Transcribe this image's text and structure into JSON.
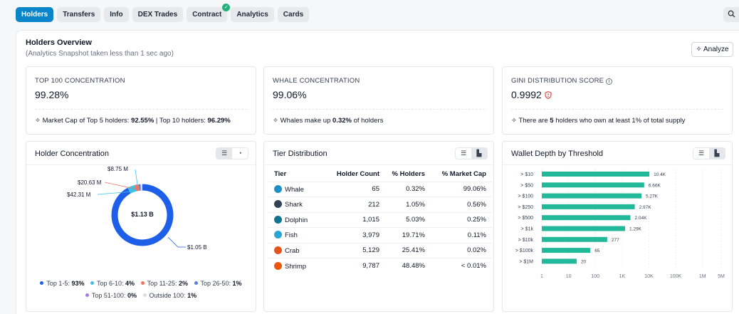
{
  "tabs": [
    {
      "label": "Holders",
      "active": true
    },
    {
      "label": "Transfers",
      "active": false
    },
    {
      "label": "Info",
      "active": false
    },
    {
      "label": "DEX Trades",
      "active": false
    },
    {
      "label": "Contract",
      "active": false,
      "badge": "check-icon"
    },
    {
      "label": "Analytics",
      "active": false
    },
    {
      "label": "Cards",
      "active": false
    }
  ],
  "overview": {
    "title": "Holders Overview",
    "subtitle": "(Analytics Snapshot taken less than 1 sec ago)",
    "analyze_label": "Analyze"
  },
  "stats": {
    "top100": {
      "label": "TOP 100 CONCENTRATION",
      "value": "99.28%",
      "foot_pre": "Market Cap of Top 5 holders: ",
      "foot_v1": "92.55%",
      "foot_mid": " | Top 10 holders: ",
      "foot_v2": "96.29%"
    },
    "whale": {
      "label": "WHALE CONCENTRATION",
      "value": "99.06%",
      "foot_pre": "Whales make up ",
      "foot_v1": "0.32%",
      "foot_post": " of holders"
    },
    "gini": {
      "label": "GINI DISTRIBUTION SCORE",
      "value": "0.9992",
      "foot_pre": "There are ",
      "foot_v1": "5",
      "foot_post": " holders who own at least 1% of total supply"
    }
  },
  "holder_concentration": {
    "title": "Holder Concentration",
    "center_label": "$1.13 B",
    "callouts": [
      "$8.75 M",
      "$20.63 M",
      "$42.31 M",
      "$1.05 B"
    ],
    "legend": [
      {
        "label": "Top 1-5:",
        "value": "93%",
        "color": "#1d5fe8"
      },
      {
        "label": "Top 6-10:",
        "value": "4%",
        "color": "#3cc2e6"
      },
      {
        "label": "Top 11-25:",
        "value": "2%",
        "color": "#f0735f"
      },
      {
        "label": "Top 26-50:",
        "value": "1%",
        "color": "#5b7ee0"
      },
      {
        "label": "Top 51-100:",
        "value": "0%",
        "color": "#a77be0"
      },
      {
        "label": "Outside 100:",
        "value": "1%",
        "color": "#d9dce1"
      }
    ]
  },
  "tier_distribution": {
    "title": "Tier Distribution",
    "headers": [
      "Tier",
      "Holder Count",
      "% Holders",
      "% Market Cap"
    ],
    "rows": [
      {
        "tier": "Whale",
        "icon": "whale-icon",
        "color": "#1d8fc7",
        "count": "65",
        "holders": "0.32%",
        "mcap": "99.06%"
      },
      {
        "tier": "Shark",
        "icon": "shark-icon",
        "color": "#334155",
        "count": "212",
        "holders": "1.05%",
        "mcap": "0.56%"
      },
      {
        "tier": "Dolphin",
        "icon": "dolphin-icon",
        "color": "#0e7490",
        "count": "1,015",
        "holders": "5.03%",
        "mcap": "0.25%"
      },
      {
        "tier": "Fish",
        "icon": "fish-icon",
        "color": "#2aa6d6",
        "count": "3,979",
        "holders": "19.71%",
        "mcap": "0.11%"
      },
      {
        "tier": "Crab",
        "icon": "crab-icon",
        "color": "#e5531f",
        "count": "5,129",
        "holders": "25.41%",
        "mcap": "0.02%"
      },
      {
        "tier": "Shrimp",
        "icon": "shrimp-icon",
        "color": "#ea580c",
        "count": "9,787",
        "holders": "48.48%",
        "mcap": "< 0.01%"
      }
    ]
  },
  "wallet_depth": {
    "title": "Wallet Depth by Threshold"
  },
  "chart_data": [
    {
      "type": "pie",
      "categories": [
        "Top 1-5",
        "Top 6-10",
        "Top 11-25",
        "Top 26-50",
        "Top 51-100",
        "Outside 100"
      ],
      "values": [
        93,
        4,
        2,
        1,
        0,
        1
      ]
    },
    {
      "type": "bar",
      "orientation": "horizontal",
      "x_scale": "log",
      "xlim": [
        1,
        5000000
      ],
      "categories": [
        "> $10",
        "> $50",
        "> $100",
        "> $250",
        "> $500",
        "> $1k",
        "> $10k",
        "> $100k",
        "> $1M"
      ],
      "values": [
        10400,
        6660,
        5270,
        2970,
        2040,
        1290,
        277,
        65,
        20
      ],
      "data_labels": [
        "10.4K",
        "6.66K",
        "5.27K",
        "2.97K",
        "2.04K",
        "1.29K",
        "277",
        "65",
        "20"
      ],
      "x_ticks": [
        1,
        10,
        100,
        1000,
        10000,
        100000,
        1000000,
        5000000
      ],
      "x_tick_labels": [
        "1",
        "10",
        "100",
        "1K",
        "10K",
        "100K",
        "1M",
        "5M"
      ],
      "color": "#22b89a"
    }
  ]
}
